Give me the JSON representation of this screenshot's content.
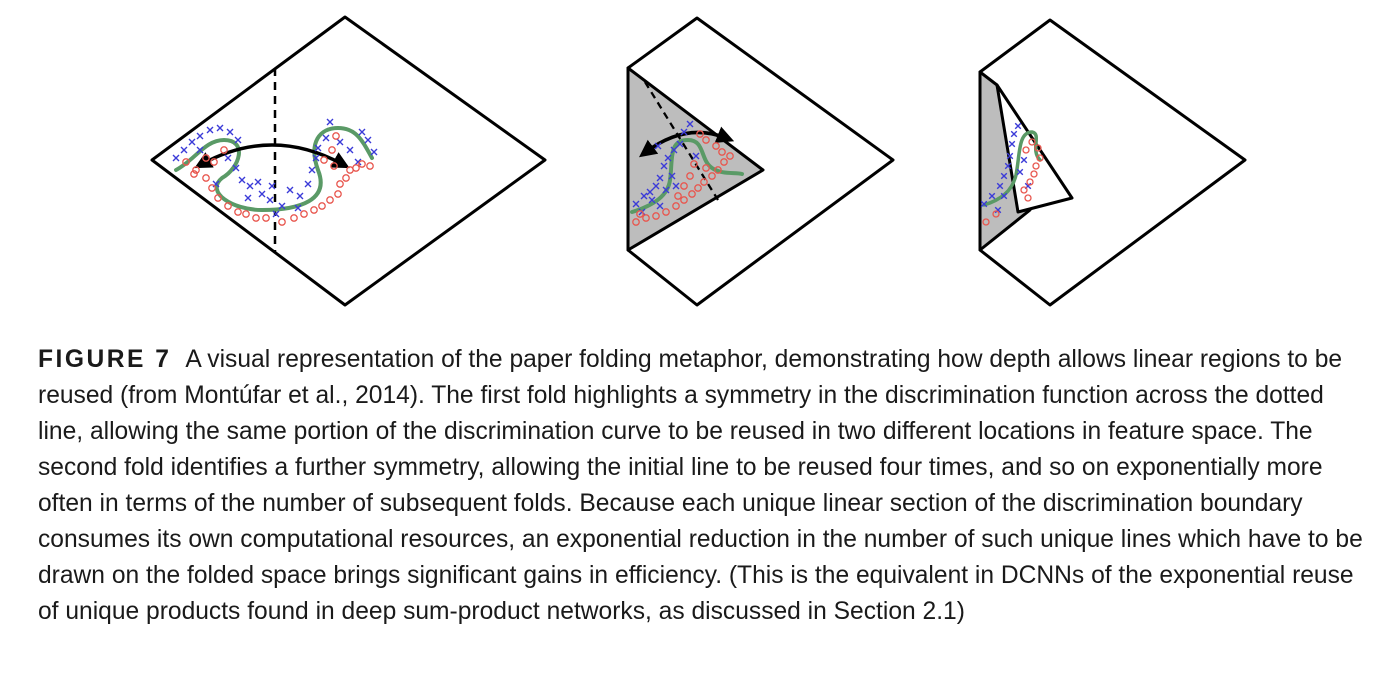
{
  "figure": {
    "label": "FIGURE 7",
    "caption": "A visual representation of the paper folding metaphor, demonstrating how depth allows linear regions to be reused (from Montúfar et al., 2014). The first fold highlights a symmetry in the discrimination function across the dotted line, allowing the same portion of the discrimination curve to be reused in two different locations in feature space. The second fold identifies a further symmetry, allowing the initial line to be reused four times, and so on exponentially more often in terms of the number of subsequent folds. Because each unique linear section of the discrimination boundary consumes its own computational resources, an exponential reduction in the number of such unique lines which have to be drawn on the folded space brings significant gains in efficiency. (This is the equivalent in DCNNs of the exponential reuse of unique products found in deep sum-product networks, as discussed in Section 2.1)"
  },
  "colors": {
    "boundary": "#5a9a66",
    "class_a": "#3b3bd8",
    "class_b": "#e8574f",
    "folded_region": "#bdbdbd",
    "outline": "#000000"
  },
  "panels": [
    {
      "name": "unfolded-sheet",
      "folds": 0
    },
    {
      "name": "first-fold",
      "folds": 1
    },
    {
      "name": "second-fold",
      "folds": 2
    }
  ]
}
